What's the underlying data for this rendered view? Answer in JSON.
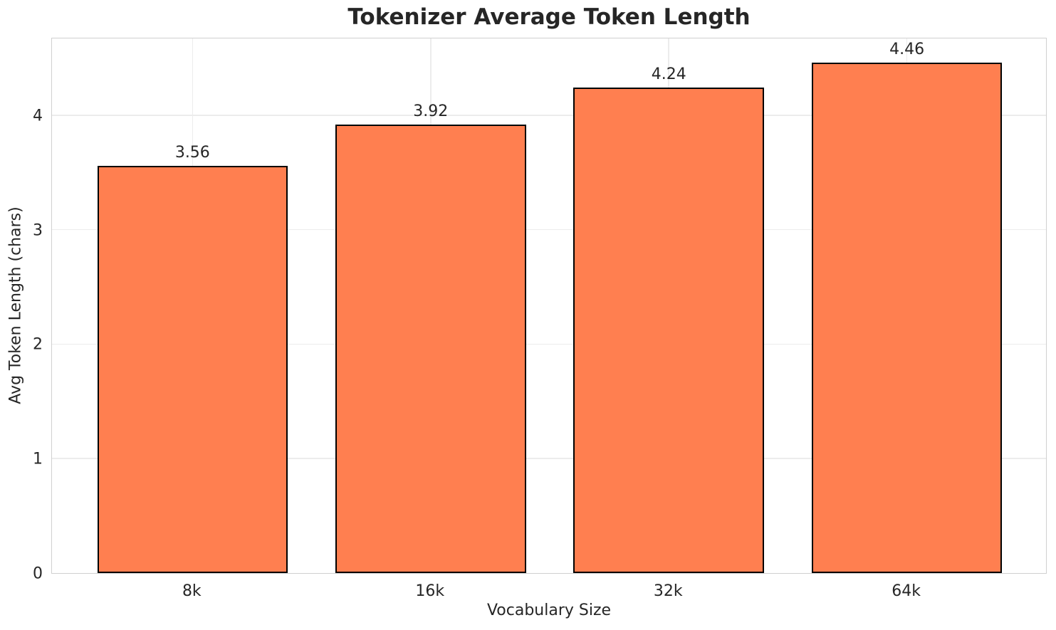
{
  "chart_data": {
    "type": "bar",
    "title": "Tokenizer Average Token Length",
    "xlabel": "Vocabulary Size",
    "ylabel": "Avg Token Length (chars)",
    "categories": [
      "8k",
      "16k",
      "32k",
      "64k"
    ],
    "values": [
      3.56,
      3.92,
      4.24,
      4.46
    ],
    "value_labels": [
      "3.56",
      "3.92",
      "4.24",
      "4.46"
    ],
    "yticks": [
      0,
      1,
      2,
      3,
      4
    ],
    "ytick_labels": [
      "0",
      "1",
      "2",
      "3",
      "4"
    ],
    "ylim": [
      0,
      4.683
    ],
    "grid": true,
    "legend": "none",
    "bar_color": "#FF7F50",
    "bar_edge_color": "#000000",
    "grid_color": "#ececec",
    "spine_color": "#d0d0d0",
    "text_color": "#262626",
    "background_color": "#ffffff"
  }
}
